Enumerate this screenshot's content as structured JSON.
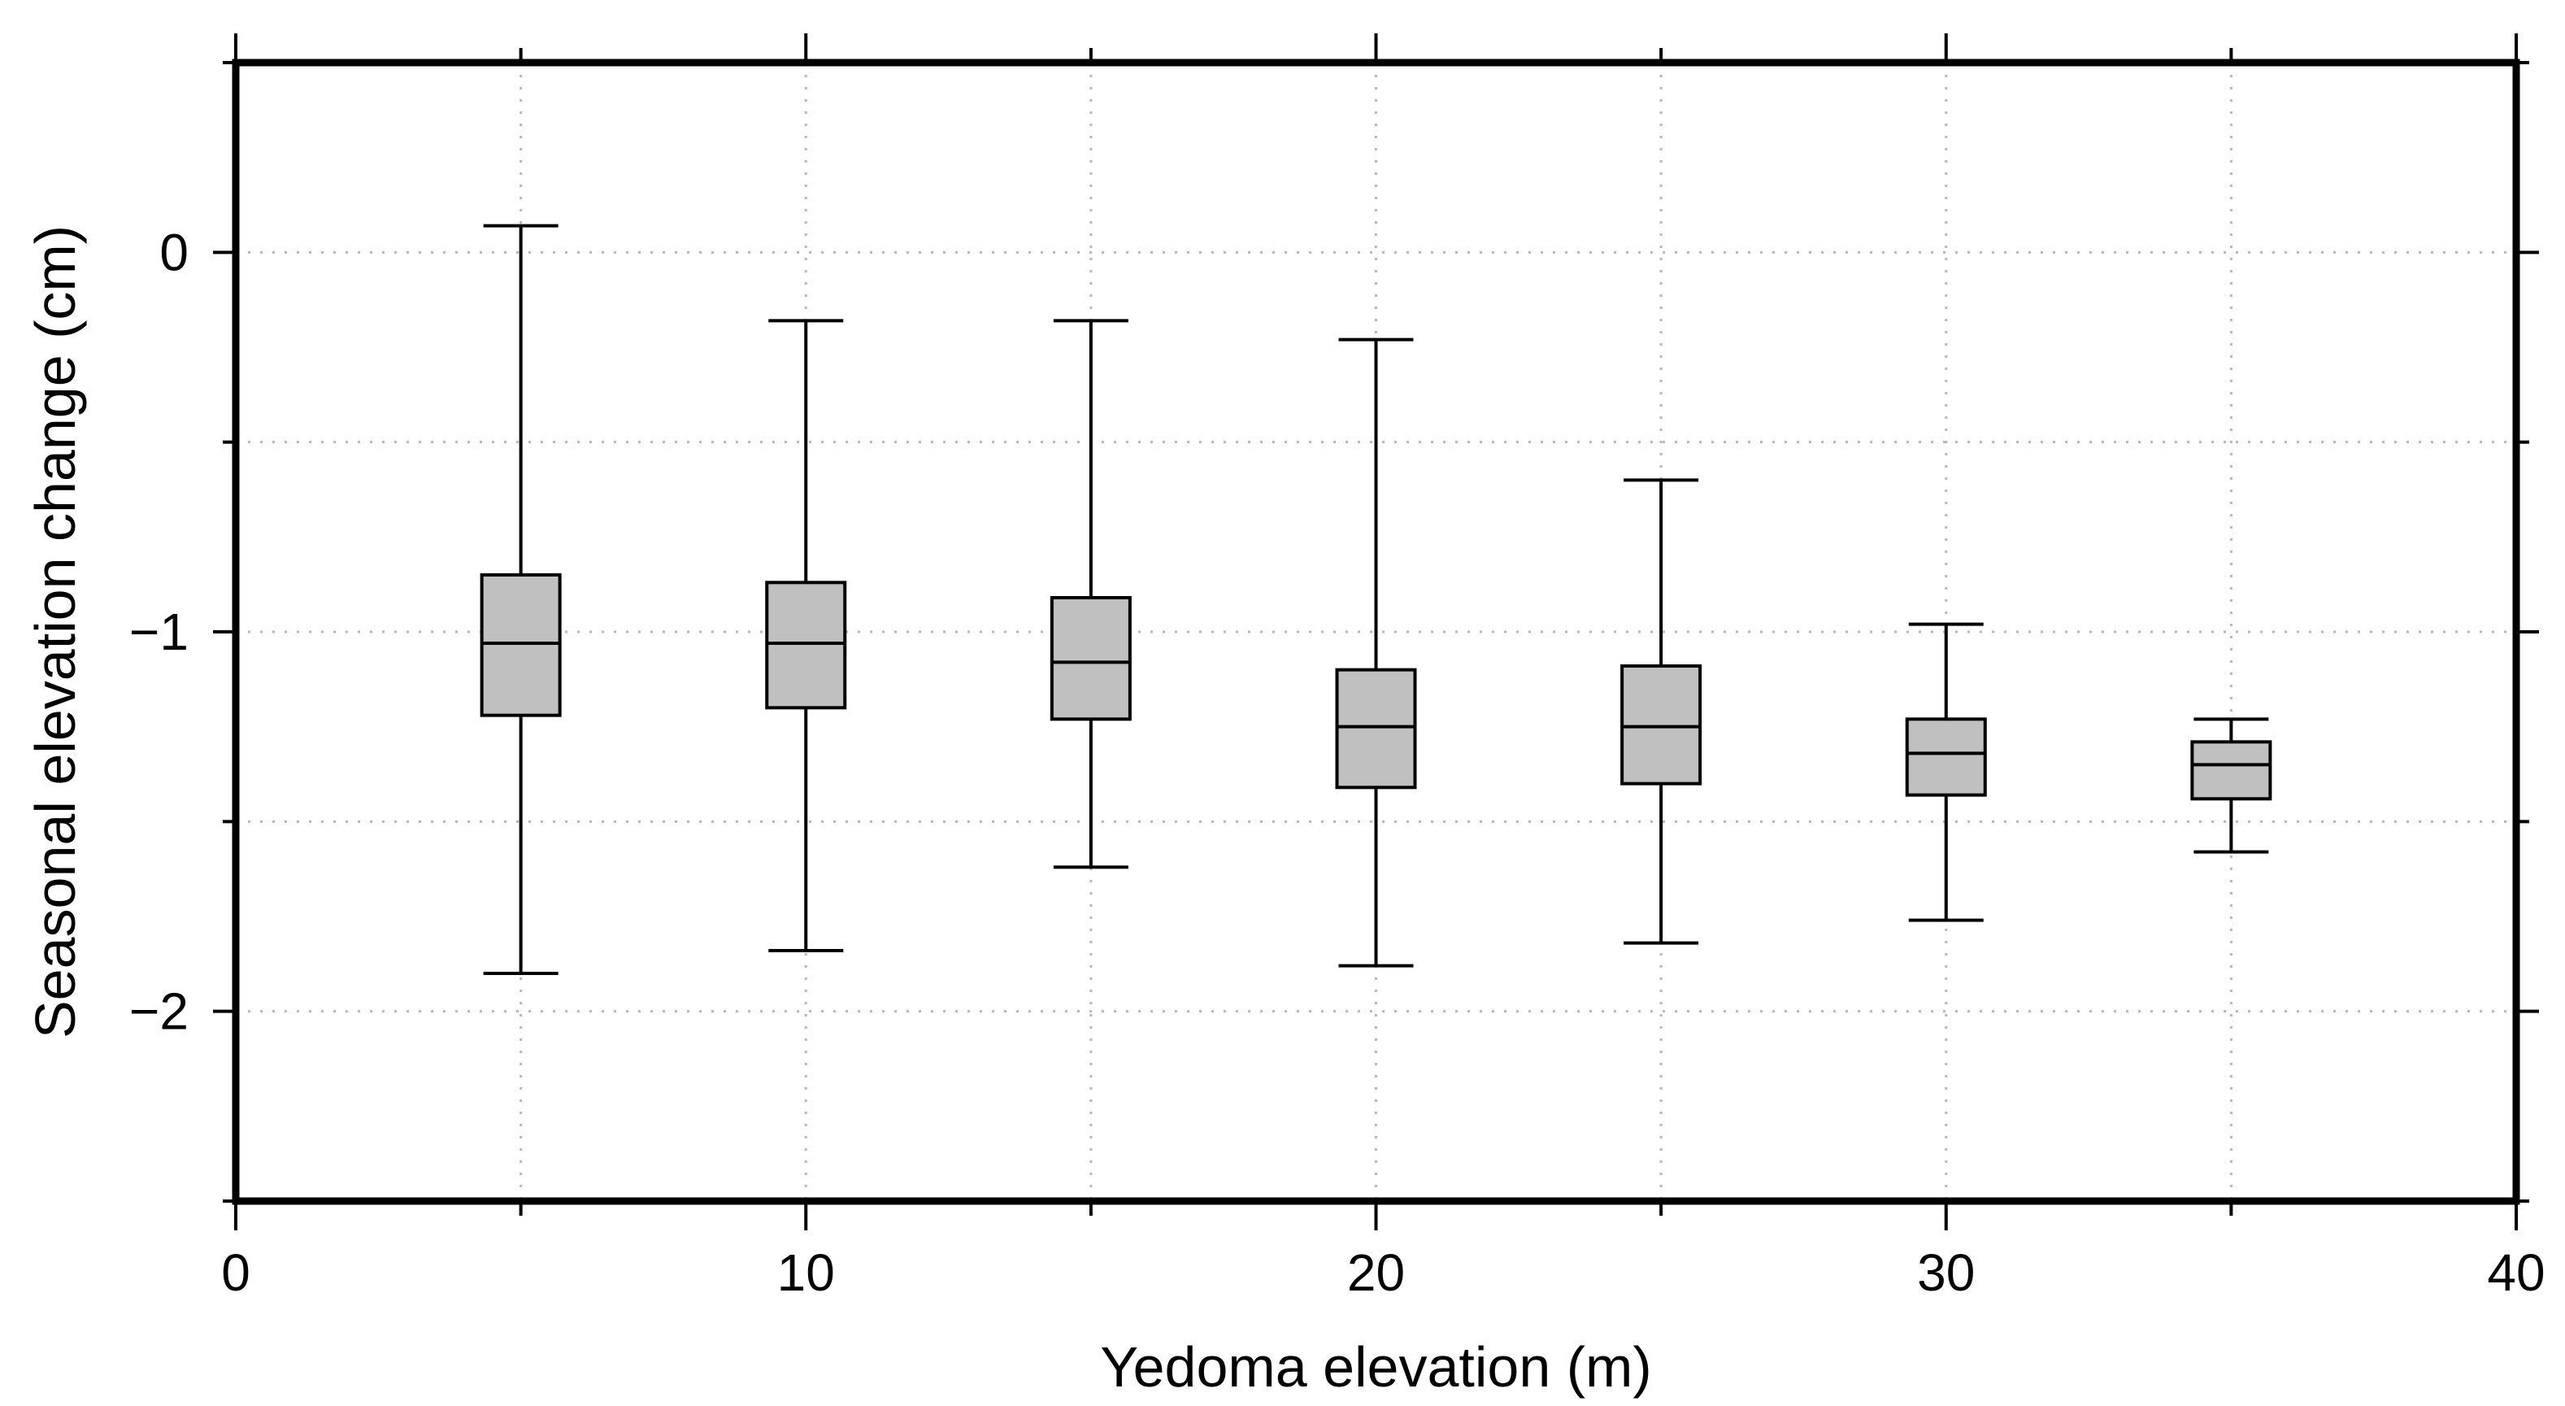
{
  "chart_data": {
    "type": "boxplot",
    "title": "",
    "xlabel": "Yedoma elevation (m)",
    "ylabel": "Seasonal elevation change (cm)",
    "xlim": [
      0,
      40
    ],
    "ylim": [
      -2.5,
      0.5
    ],
    "x_ticks": [
      0,
      10,
      20,
      30,
      40
    ],
    "x_tick_labels": [
      "0",
      "10",
      "20",
      "30",
      "40"
    ],
    "y_ticks": [
      0,
      -1,
      -2
    ],
    "y_tick_labels": [
      "0",
      "−1",
      "−2"
    ],
    "x_minor_ticks": [
      5,
      15,
      25,
      35
    ],
    "y_minor_ticks": [
      0.5,
      -0.5,
      -1.5,
      -2.5
    ],
    "grid": true,
    "box_fill": "#c0c0c0",
    "boxes": [
      {
        "x": 5,
        "whisker_low": -1.9,
        "q1": -1.22,
        "median": -1.03,
        "q3": -0.85,
        "whisker_high": 0.07
      },
      {
        "x": 10,
        "whisker_low": -1.84,
        "q1": -1.2,
        "median": -1.03,
        "q3": -0.87,
        "whisker_high": -0.18
      },
      {
        "x": 15,
        "whisker_low": -1.62,
        "q1": -1.23,
        "median": -1.08,
        "q3": -0.91,
        "whisker_high": -0.18
      },
      {
        "x": 20,
        "whisker_low": -1.88,
        "q1": -1.41,
        "median": -1.25,
        "q3": -1.1,
        "whisker_high": -0.23
      },
      {
        "x": 25,
        "whisker_low": -1.82,
        "q1": -1.4,
        "median": -1.25,
        "q3": -1.09,
        "whisker_high": -0.6
      },
      {
        "x": 30,
        "whisker_low": -1.76,
        "q1": -1.43,
        "median": -1.32,
        "q3": -1.23,
        "whisker_high": -0.98
      },
      {
        "x": 35,
        "whisker_low": -1.58,
        "q1": -1.44,
        "median": -1.35,
        "q3": -1.29,
        "whisker_high": -1.23
      }
    ]
  }
}
